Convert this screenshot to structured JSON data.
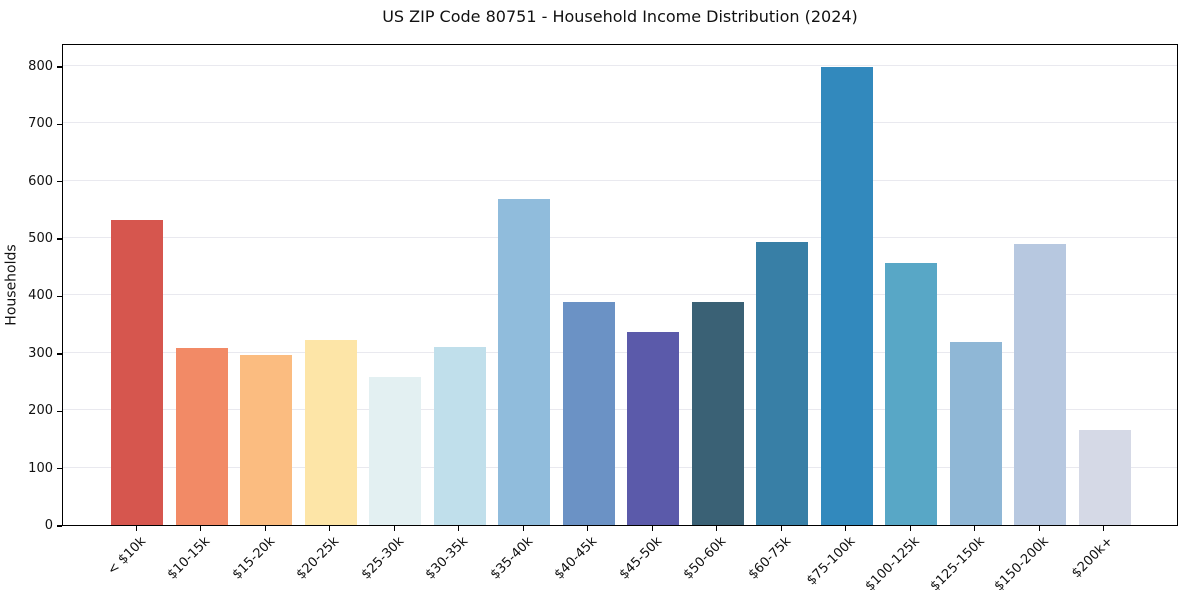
{
  "chart_data": {
    "type": "bar",
    "title": "US ZIP Code 80751 - Household Income Distribution (2024)",
    "xlabel": "",
    "ylabel": "Households",
    "categories": [
      "< $10k",
      "$10-15k",
      "$15-20k",
      "$20-25k",
      "$25-30k",
      "$30-35k",
      "$35-40k",
      "$40-45k",
      "$45-50k",
      "$50-60k",
      "$60-75k",
      "$75-100k",
      "$100-125k",
      "$125-150k",
      "$150-200k",
      "$200k+"
    ],
    "values": [
      531,
      309,
      297,
      322,
      258,
      311,
      569,
      388,
      337,
      389,
      494,
      798,
      456,
      319,
      489,
      166
    ],
    "bar_colors": [
      "#d6564e",
      "#f28a66",
      "#fbbc80",
      "#fde5a7",
      "#e3f0f2",
      "#c0dfeb",
      "#90bcdc",
      "#6b92c5",
      "#5b5aaa",
      "#3a6175",
      "#387fa6",
      "#3289bd",
      "#58a7c6",
      "#8fb7d6",
      "#b7c8e0",
      "#d5d9e6"
    ],
    "yticks": [
      0,
      100,
      200,
      300,
      400,
      500,
      600,
      700,
      800
    ],
    "ylim": [
      0,
      840
    ],
    "grid": "horizontal",
    "grid_color": "#e9e9ef",
    "spine_color": "#000000",
    "background_color": "#ffffff",
    "x_tick_rotation_deg": 45,
    "legend": "none"
  }
}
